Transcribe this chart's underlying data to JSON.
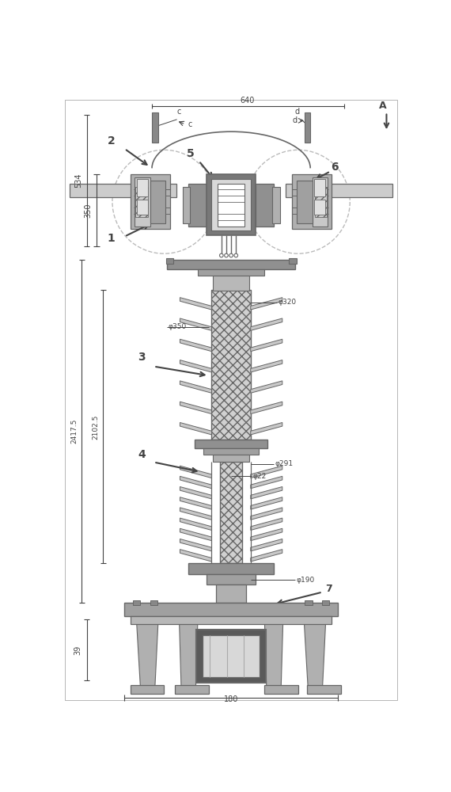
{
  "line_color": "#666666",
  "dark_color": "#444444",
  "fig_width": 5.7,
  "fig_height": 10.0,
  "dim_640": "640",
  "dim_534": "534",
  "dim_350": "350",
  "dim_2417_5": "2417.5",
  "dim_2102_5": "2102.5",
  "dim_180": "180",
  "dim_39": "39",
  "dim_phi320": "φ320",
  "dim_phi350": "φ350",
  "dim_phi291": "φ291",
  "dim_phi22": "φ22",
  "dim_phi190": "φ190",
  "label_c": "c",
  "label_d": "d",
  "label_A": "A",
  "gray_light": "#cccccc",
  "gray_mid": "#aaaaaa",
  "gray_dark": "#888888",
  "gray_darker": "#666666",
  "hatch_color": "#999999"
}
